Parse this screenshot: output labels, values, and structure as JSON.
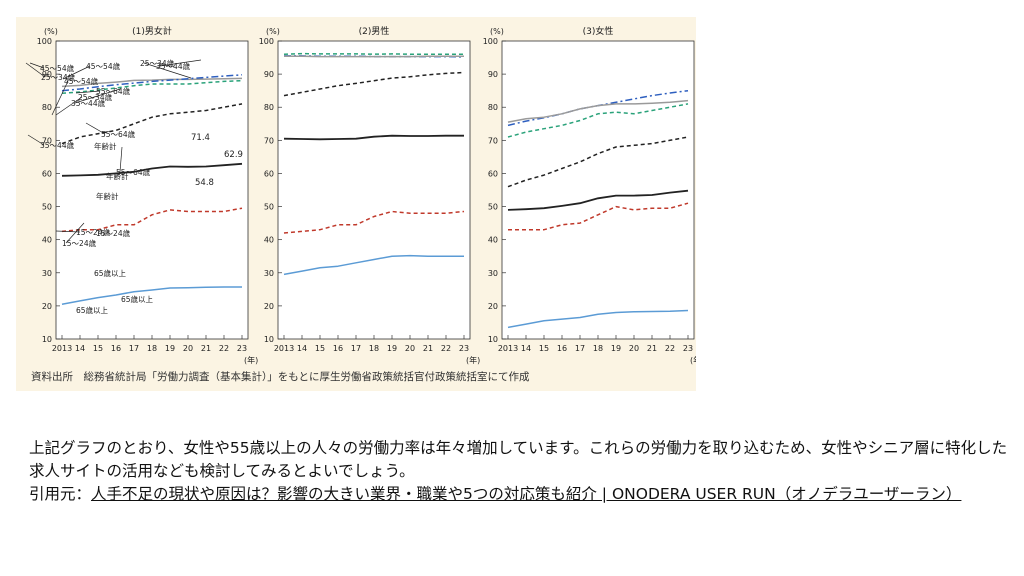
{
  "source_note": "資料出所　総務省統計局「労働力調査（基本集計）」をもとに厚生労働省政策統括官付政策統括室にて作成",
  "paragraph": "上記グラフのとおり、女性や55歳以上の人々の労働力率は年々増加しています。これらの労働力を取り込むため、女性やシニア層に特化した求人サイトの活用なども検討してみるとよいでしょう。",
  "citation": {
    "prefix": "引用元：",
    "link_text": "人手不足の現状や原因は？影響の大きい業界・職業や5つの対応策も紹介 | ONODERA USER RUN（オノデラユーザーラン）"
  },
  "colors": {
    "total": "#222222",
    "age15_24": "#c0392b",
    "age25_34": "#9a9a9a",
    "age35_44": "#2aa27a",
    "age45_54": "#2e5fbf",
    "age55_64": "#222222",
    "age65plus": "#5b9bd5",
    "figure_bg": "#fbf4e3",
    "plot_bg": "#ffffff"
  },
  "chart_data": [
    {
      "type": "line",
      "title": "(1)男女計",
      "ylabel": "(%)",
      "xlabel": "(年)",
      "ylim": [
        10,
        100
      ],
      "yticks": [
        "10",
        "20",
        "30",
        "40",
        "50",
        "60",
        "70",
        "80",
        "90",
        "100"
      ],
      "x_tick_labels": [
        "2013",
        "14",
        "15",
        "16",
        "17",
        "18",
        "19",
        "20",
        "21",
        "22",
        "23"
      ],
      "grid": false,
      "series": [
        {
          "name": "25～34歳",
          "key": "age25_34",
          "style": "solid",
          "values": [
            86.3,
            86.6,
            87.2,
            87.6,
            88.1,
            88.2,
            88.4,
            88.4,
            88.5,
            88.6,
            88.7
          ]
        },
        {
          "name": "45～54歳",
          "key": "age45_54",
          "style": "dashdot",
          "values": [
            85.0,
            85.5,
            86.2,
            86.8,
            87.3,
            87.8,
            88.2,
            88.6,
            89.0,
            89.4,
            89.8
          ]
        },
        {
          "name": "35～44歳",
          "key": "age35_44",
          "style": "dash",
          "values": [
            84.2,
            84.6,
            85.2,
            85.8,
            86.5,
            87.0,
            87.0,
            87.0,
            87.4,
            87.8,
            88.0
          ]
        },
        {
          "name": "55～64歳",
          "key": "age55_64",
          "style": "dash",
          "values": [
            69.0,
            71.0,
            72.0,
            73.0,
            75.0,
            77.0,
            78.0,
            78.5,
            79.0,
            80.0,
            81.0
          ]
        },
        {
          "name": "年齢計",
          "key": "total",
          "style": "solid",
          "values": [
            59.3,
            59.4,
            59.6,
            60.0,
            60.5,
            61.5,
            62.1,
            62.0,
            62.1,
            62.5,
            62.9
          ]
        },
        {
          "name": "15～24歳",
          "key": "age15_24",
          "style": "dash",
          "values": [
            42.5,
            43.0,
            43.0,
            44.5,
            44.5,
            47.5,
            49.0,
            48.5,
            48.5,
            48.5,
            49.5
          ]
        },
        {
          "name": "65歳以上",
          "key": "age65plus",
          "style": "solid",
          "values": [
            20.5,
            21.5,
            22.5,
            23.3,
            24.3,
            24.8,
            25.4,
            25.5,
            25.6,
            25.7,
            25.7
          ]
        }
      ],
      "annotations": [
        {
          "text": "45～54歳",
          "series": "age45_54"
        },
        {
          "text": "25～34歳",
          "series": "age25_34"
        },
        {
          "text": "35～44歳",
          "series": "age35_44"
        },
        {
          "text": "55～64歳",
          "series": "age55_64"
        },
        {
          "text": "年齢計",
          "series": "total"
        },
        {
          "text": "15～24歳",
          "series": "age15_24"
        },
        {
          "text": "65歳以上",
          "series": "age65plus"
        },
        {
          "text": "62.9",
          "series": "total"
        }
      ]
    },
    {
      "type": "line",
      "title": "(2)男性",
      "ylabel": "(%)",
      "xlabel": "(年)",
      "ylim": [
        10,
        100
      ],
      "yticks": [
        "10",
        "20",
        "30",
        "40",
        "50",
        "60",
        "70",
        "80",
        "90",
        "100"
      ],
      "x_tick_labels": [
        "2013",
        "14",
        "15",
        "16",
        "17",
        "18",
        "19",
        "20",
        "21",
        "22",
        "23"
      ],
      "grid": false,
      "series": [
        {
          "name": "45～54歳",
          "key": "age45_54",
          "style": "dashdot",
          "values": [
            95.5,
            95.5,
            95.4,
            95.4,
            95.4,
            95.3,
            95.3,
            95.3,
            95.3,
            95.3,
            95.2
          ]
        },
        {
          "name": "25～34歳",
          "key": "age25_34",
          "style": "solid",
          "values": [
            95.4,
            95.4,
            95.3,
            95.3,
            95.3,
            95.3,
            95.3,
            95.3,
            95.4,
            95.4,
            95.4
          ]
        },
        {
          "name": "35～44歳",
          "key": "age35_44",
          "style": "dash",
          "values": [
            96.0,
            96.2,
            96.1,
            96.1,
            96.1,
            96.0,
            96.1,
            96.0,
            96.0,
            96.0,
            96.0
          ]
        },
        {
          "name": "55～64歳",
          "key": "age55_64",
          "style": "dash",
          "values": [
            83.5,
            84.5,
            85.5,
            86.5,
            87.2,
            88.0,
            88.8,
            89.2,
            89.8,
            90.2,
            90.5
          ]
        },
        {
          "name": "年齢計",
          "key": "total",
          "style": "solid",
          "values": [
            70.5,
            70.4,
            70.3,
            70.4,
            70.5,
            71.1,
            71.4,
            71.3,
            71.3,
            71.4,
            71.4
          ]
        },
        {
          "name": "15～24歳",
          "key": "age15_24",
          "style": "dash",
          "values": [
            42.0,
            42.5,
            43.0,
            44.5,
            44.5,
            47.0,
            48.5,
            48.0,
            48.0,
            48.0,
            48.5
          ]
        },
        {
          "name": "65歳以上",
          "key": "age65plus",
          "style": "solid",
          "values": [
            29.5,
            30.5,
            31.5,
            32.0,
            33.0,
            34.0,
            35.0,
            35.2,
            35.0,
            35.0,
            35.0
          ]
        }
      ],
      "annotations": [
        {
          "text": "45～54歳",
          "series": "age45_54"
        },
        {
          "text": "25～34歳",
          "series": "age25_34"
        },
        {
          "text": "35～44歳",
          "series": "age35_44"
        },
        {
          "text": "55～64歳",
          "series": "age55_64"
        },
        {
          "text": "年齢計",
          "series": "total"
        },
        {
          "text": "15～24歳",
          "series": "age15_24"
        },
        {
          "text": "65歳以上",
          "series": "age65plus"
        },
        {
          "text": "71.4",
          "series": "total"
        }
      ]
    },
    {
      "type": "line",
      "title": "(3)女性",
      "ylabel": "(%)",
      "xlabel": "(年)",
      "ylim": [
        10,
        100
      ],
      "yticks": [
        "10",
        "20",
        "30",
        "40",
        "50",
        "60",
        "70",
        "80",
        "90",
        "100"
      ],
      "x_tick_labels": [
        "2013",
        "14",
        "15",
        "16",
        "17",
        "18",
        "19",
        "20",
        "21",
        "22",
        "23"
      ],
      "grid": false,
      "series": [
        {
          "name": "45～54歳",
          "key": "age45_54",
          "style": "dashdot",
          "values": [
            74.5,
            75.8,
            76.8,
            78.0,
            79.5,
            80.5,
            81.5,
            82.5,
            83.5,
            84.3,
            85.0
          ]
        },
        {
          "name": "25～34歳",
          "key": "age25_34",
          "style": "solid",
          "values": [
            75.5,
            76.5,
            77.0,
            78.0,
            79.5,
            80.5,
            81.0,
            81.0,
            81.2,
            81.5,
            82.0
          ]
        },
        {
          "name": "35～44歳",
          "key": "age35_44",
          "style": "dash",
          "values": [
            71.0,
            72.5,
            73.5,
            74.5,
            76.0,
            78.0,
            78.5,
            78.0,
            79.0,
            80.0,
            81.0
          ]
        },
        {
          "name": "55～64歳",
          "key": "age55_64",
          "style": "dash",
          "values": [
            56.0,
            58.0,
            59.5,
            61.5,
            63.5,
            66.0,
            68.0,
            68.5,
            69.0,
            70.0,
            71.0
          ]
        },
        {
          "name": "年齢計",
          "key": "total",
          "style": "solid",
          "values": [
            49.0,
            49.2,
            49.5,
            50.2,
            51.0,
            52.5,
            53.3,
            53.3,
            53.5,
            54.2,
            54.8
          ]
        },
        {
          "name": "15～24歳",
          "key": "age15_24",
          "style": "dash",
          "values": [
            43.0,
            43.0,
            43.0,
            44.5,
            45.0,
            47.5,
            50.0,
            49.0,
            49.5,
            49.5,
            51.0
          ]
        },
        {
          "name": "65歳以上",
          "key": "age65plus",
          "style": "solid",
          "values": [
            13.5,
            14.5,
            15.5,
            16.0,
            16.5,
            17.5,
            18.0,
            18.2,
            18.3,
            18.4,
            18.6
          ]
        }
      ],
      "annotations": [
        {
          "text": "45～54歳",
          "series": "age45_54"
        },
        {
          "text": "25～34歳",
          "series": "age25_34"
        },
        {
          "text": "35～44歳",
          "series": "age35_44"
        },
        {
          "text": "55～64歳",
          "series": "age55_64"
        },
        {
          "text": "年齢計",
          "series": "total"
        },
        {
          "text": "15～24歳",
          "series": "age15_24"
        },
        {
          "text": "65歳以上",
          "series": "age65plus"
        },
        {
          "text": "54.8",
          "series": "total"
        }
      ]
    }
  ]
}
